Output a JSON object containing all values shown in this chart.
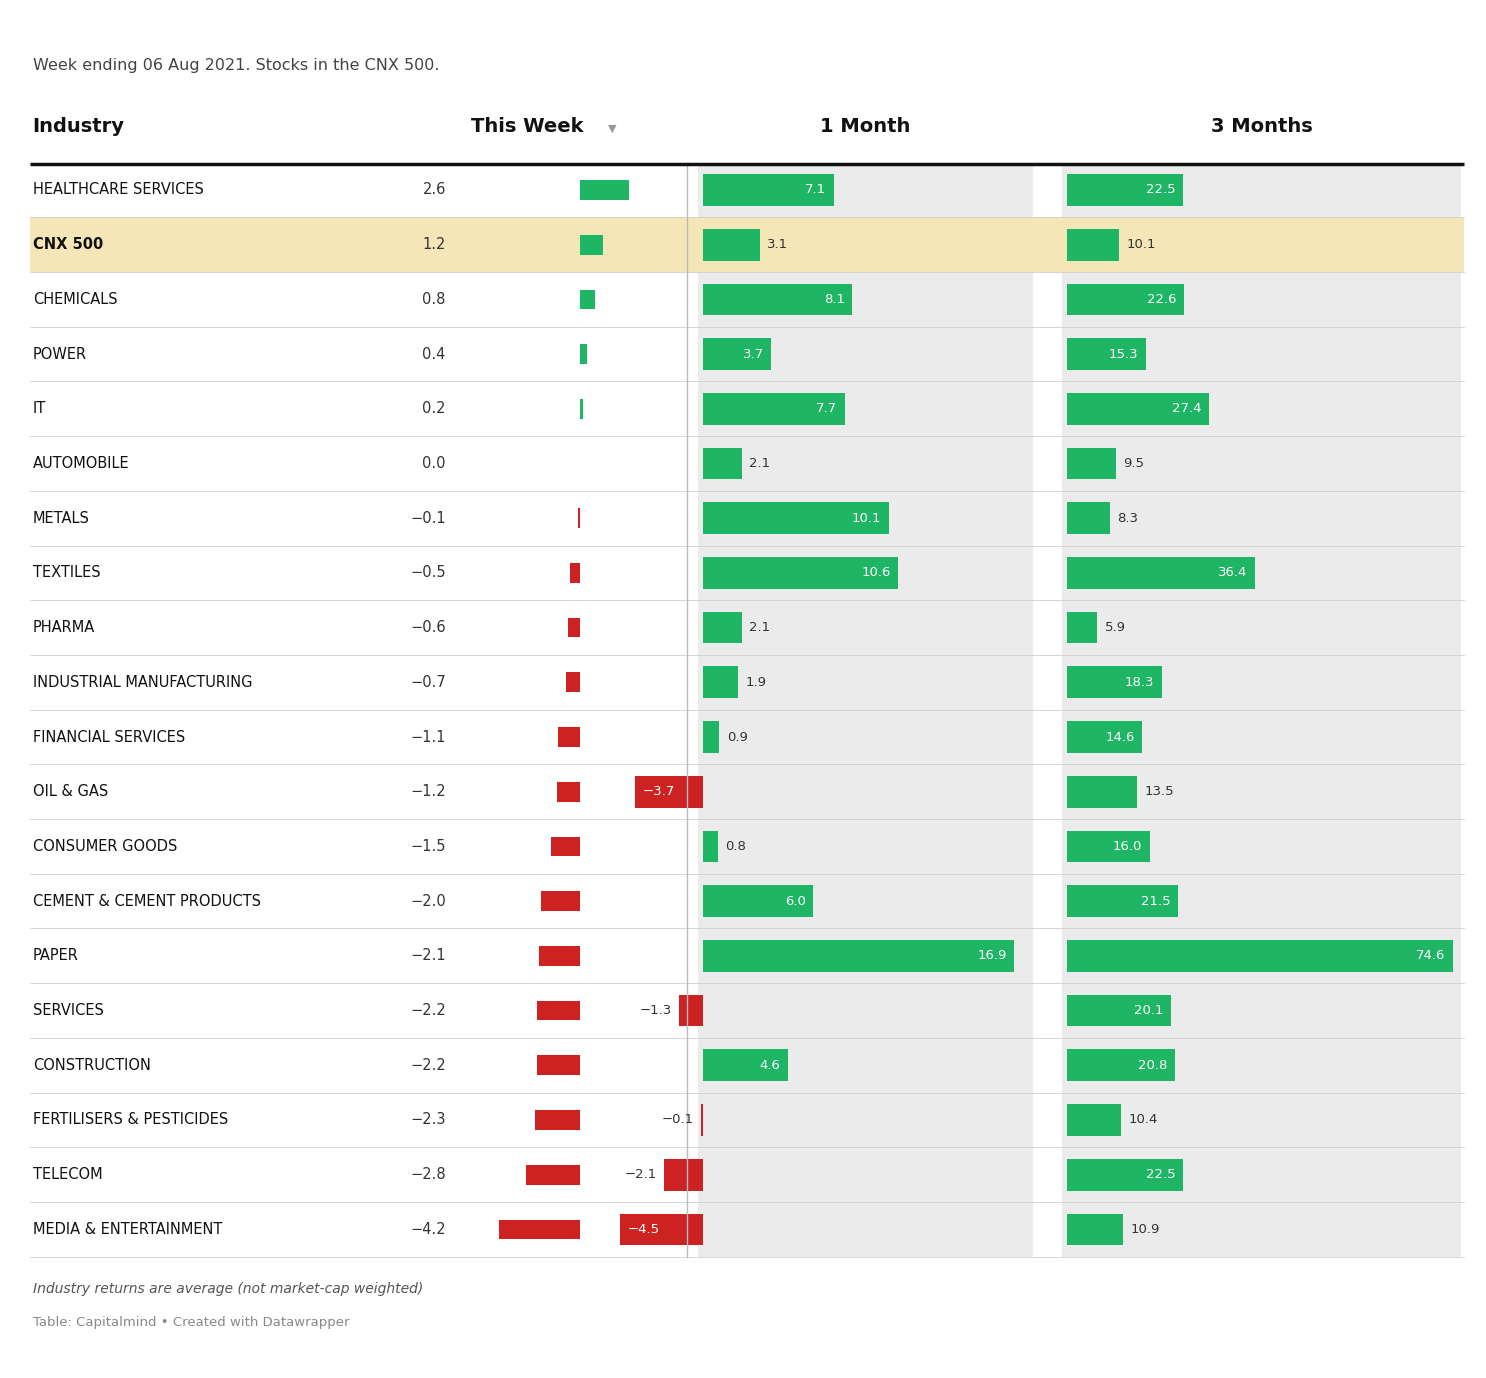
{
  "subtitle": "Week ending 06 Aug 2021. Stocks in the CNX 500.",
  "header_industry": "Industry",
  "header_this_week": "This Week",
  "header_1month": "1 Month",
  "header_3months": "3 Months",
  "footnote1": "Industry returns are average (not market-cap weighted)",
  "footnote2": "Table: Capitalmind • Created with Datawrapper",
  "industries": [
    "HEALTHCARE SERVICES",
    "CNX 500",
    "CHEMICALS",
    "POWER",
    "IT",
    "AUTOMOBILE",
    "METALS",
    "TEXTILES",
    "PHARMA",
    "INDUSTRIAL MANUFACTURING",
    "FINANCIAL SERVICES",
    "OIL & GAS",
    "CONSUMER GOODS",
    "CEMENT & CEMENT PRODUCTS",
    "PAPER",
    "SERVICES",
    "CONSTRUCTION",
    "FERTILISERS & PESTICIDES",
    "TELECOM",
    "MEDIA & ENTERTAINMENT"
  ],
  "this_week": [
    2.6,
    1.2,
    0.8,
    0.4,
    0.2,
    0.0,
    -0.1,
    -0.5,
    -0.6,
    -0.7,
    -1.1,
    -1.2,
    -1.5,
    -2.0,
    -2.1,
    -2.2,
    -2.2,
    -2.3,
    -2.8,
    -4.2
  ],
  "one_month": [
    7.1,
    3.1,
    8.1,
    3.7,
    7.7,
    2.1,
    10.1,
    10.6,
    2.1,
    1.9,
    0.9,
    -3.7,
    0.8,
    6.0,
    16.9,
    -1.3,
    4.6,
    -0.1,
    -2.1,
    -4.5
  ],
  "three_months": [
    22.5,
    10.1,
    22.6,
    15.3,
    27.4,
    9.5,
    8.3,
    36.4,
    5.9,
    18.3,
    14.6,
    13.5,
    16.0,
    21.5,
    74.6,
    20.1,
    20.8,
    10.4,
    22.5,
    10.9
  ],
  "highlight_row": 1,
  "highlight_color": "#f5e6b8",
  "green_color": "#1EB564",
  "red_color": "#CC2222",
  "bg_color": "#ebebeb",
  "white_bg": "#ffffff",
  "header_bg": "#ffffff"
}
